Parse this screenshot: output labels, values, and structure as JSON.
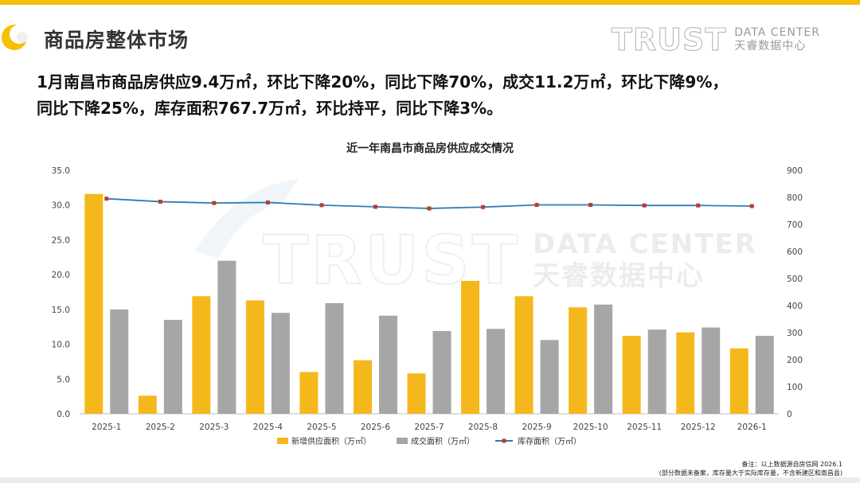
{
  "colors": {
    "accent": "#f5c000",
    "supply_bar": "#f5b81c",
    "deal_bar": "#a6a6a6",
    "inventory_line": "#2e7bb6",
    "inventory_marker": "#c0392b"
  },
  "header": {
    "section_title": "商品房整体市场",
    "brand_main": "TRUST",
    "brand_sub_en": "DATA CENTER",
    "brand_sub_cn": "天睿数据中心"
  },
  "summary": {
    "line1": "1月南昌市商品房供应9.4万㎡，环比下降20%，同比下降70%，成交11.2万㎡，环比下降9%，",
    "line2": "同比下降25%，库存面积767.7万㎡，环比持平，同比下降3%。"
  },
  "watermark": {
    "main": "TRUST",
    "sub_en": "DATA CENTER",
    "sub_cn": "天睿数据中心"
  },
  "chart_data": {
    "type": "bar",
    "title": "近一年南昌市商品房供应成交情况",
    "categories": [
      "2025-1",
      "2025-2",
      "2025-3",
      "2025-4",
      "2025-5",
      "2025-6",
      "2025-7",
      "2025-8",
      "2025-9",
      "2025-10",
      "2025-11",
      "2025-12",
      "2026-1"
    ],
    "series": [
      {
        "name": "新增供应面积（万㎡）",
        "type": "bar",
        "axis": "left",
        "values": [
          31.6,
          2.6,
          16.9,
          16.3,
          6.0,
          7.7,
          5.8,
          19.1,
          16.9,
          15.3,
          11.2,
          11.7,
          9.4
        ]
      },
      {
        "name": "成交面积（万㎡）",
        "type": "bar",
        "axis": "left",
        "values": [
          15.0,
          13.5,
          22.0,
          14.5,
          15.9,
          14.1,
          11.9,
          12.2,
          10.6,
          15.7,
          12.1,
          12.4,
          11.2
        ]
      },
      {
        "name": "库存面积（万㎡）",
        "type": "line",
        "axis": "right",
        "values": [
          795,
          784,
          779,
          781,
          771,
          765,
          759,
          764,
          772,
          772,
          770,
          770,
          767.7
        ]
      }
    ],
    "y_left": {
      "min": 0,
      "max": 35,
      "step": 5,
      "tick_labels": [
        "0.0",
        "5.0",
        "10.0",
        "15.0",
        "20.0",
        "25.0",
        "30.0",
        "35.0"
      ]
    },
    "y_right": {
      "min": 0,
      "max": 900,
      "step": 100,
      "tick_labels": [
        "0",
        "100",
        "200",
        "300",
        "400",
        "500",
        "600",
        "700",
        "800",
        "900"
      ]
    },
    "grid": false,
    "legend_position": "bottom"
  },
  "note": {
    "line1": "备注：以上数据源自房信网  2026.1",
    "line2": "(部分数据未备案，库存量大于实际库存量，不含新建区和南昌县)"
  }
}
